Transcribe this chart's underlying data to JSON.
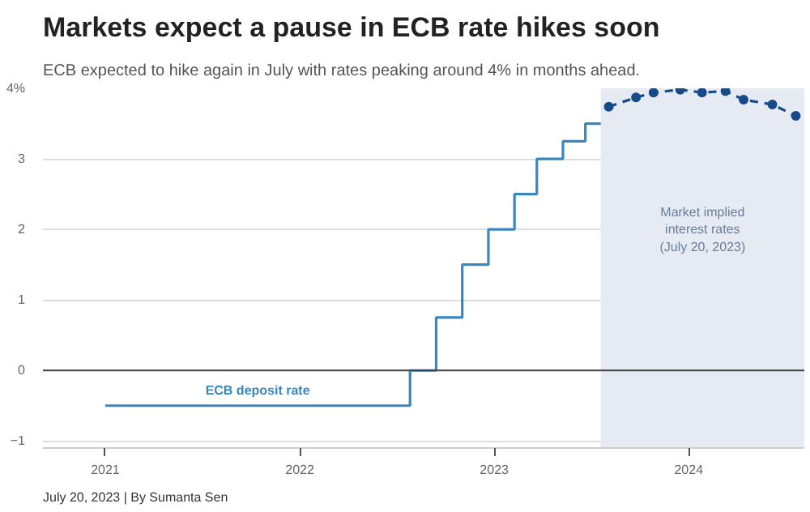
{
  "chart_data": {
    "type": "line",
    "title": "Markets expect a pause in ECB rate hikes soon",
    "subtitle": "ECB expected to hike again in July with rates peaking around 4% in months ahead.",
    "xlim": [
      "2020-09-06",
      "2024-08-05"
    ],
    "ylim": [
      -1.1,
      4
    ],
    "xticks": [
      {
        "value": "2021-01-01",
        "label": "2021"
      },
      {
        "value": "2022-01-01",
        "label": "2022"
      },
      {
        "value": "2023-01-01",
        "label": "2023"
      },
      {
        "value": "2024-01-01",
        "label": "2024"
      }
    ],
    "yticks": [
      {
        "value": 4,
        "label": "4%"
      },
      3,
      2,
      1,
      0,
      {
        "value": -1,
        "label": "−1"
      }
    ],
    "grid": "y",
    "series": [
      {
        "name": "ECB deposit rate",
        "type": "step",
        "color": "#3a87c0",
        "x": [
          "2021-01-01",
          "2022-07-27",
          "2022-09-14",
          "2022-11-02",
          "2022-12-21",
          "2023-02-08",
          "2023-03-22",
          "2023-05-10",
          "2023-06-21",
          "2023-07-20"
        ],
        "values": [
          -0.5,
          0,
          0.75,
          1.5,
          2.0,
          2.5,
          3.0,
          3.25,
          3.5,
          3.5
        ]
      },
      {
        "color": "#174a8b",
        "marker": "circle",
        "line_style": "dashed",
        "x": [
          "2023-08-04",
          "2023-09-24",
          "2023-10-27",
          "2023-12-16",
          "2024-01-26",
          "2024-03-10",
          "2024-04-13",
          "2024-06-06",
          "2024-07-20"
        ],
        "values": [
          3.74,
          3.87,
          3.94,
          3.98,
          3.94,
          3.96,
          3.84,
          3.77,
          3.61
        ]
      }
    ],
    "ref_lines": [
      {
        "axis": "y",
        "value": 0,
        "color": "#444444"
      }
    ],
    "bands": [
      {
        "axis": "x",
        "from": "2023-07-20",
        "to": "2024-08-05",
        "color": "#e5eaf3",
        "label": "Market implied\ninterest rates\n(July 20, 2023)"
      }
    ],
    "annotations": [
      "July 20, 2023 | By Sumanta Sen"
    ]
  }
}
